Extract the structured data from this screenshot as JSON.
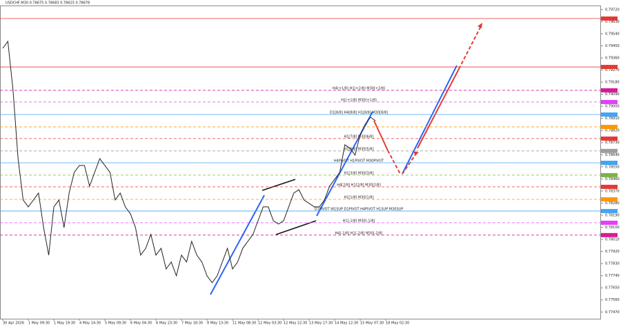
{
  "chart_data": {
    "type": "line",
    "title": "USDCHF,M30  0.78675 0.78683 0.78625 0.78678",
    "categories": [
      "30 Apr 2026",
      null,
      null,
      null,
      null,
      "1 May 09:30",
      null,
      null,
      null,
      null,
      "1 May 19:30",
      null,
      null,
      null,
      null,
      "4 May 14:30",
      null,
      null,
      null,
      null,
      "5 May 09:30",
      null,
      null,
      null,
      null,
      "6 May 04:30",
      null,
      null,
      null,
      null,
      "6 May 23:30",
      null,
      null,
      null,
      null,
      "7 May 18:30",
      null,
      null,
      null,
      null,
      "8 May 13:30",
      null,
      null,
      null,
      null,
      "11 May 08:30",
      null,
      null,
      null,
      null,
      "12 May 03:30",
      null,
      null,
      null,
      null,
      "12 May 22:30",
      null,
      null,
      null,
      null,
      "13 May 17:30",
      null,
      null,
      null,
      null,
      "14 May 12:30",
      null,
      null,
      null,
      null,
      "15 May 07:30",
      null,
      null,
      null,
      null,
      "18 May 02:30",
      null,
      null,
      null,
      null
    ],
    "series": [
      {
        "name": "USDCHF",
        "color": "#222222",
        "values": [
          0.79432,
          0.79483,
          0.79124,
          0.78611,
          0.78303,
          0.78252,
          0.78303,
          0.78355,
          0.78098,
          0.77893,
          0.78252,
          0.78303,
          0.78098,
          0.78355,
          0.78509,
          0.7856,
          0.7856,
          0.78406,
          0.78509,
          0.78611,
          0.7856,
          0.78509,
          0.78303,
          0.78355,
          0.78252,
          0.78201,
          0.78098,
          0.77893,
          0.77944,
          0.78047,
          0.77893,
          0.77944,
          0.7779,
          0.77842,
          0.77739,
          0.77893,
          0.77842,
          0.77996,
          0.77893,
          0.77842,
          0.77739,
          0.77688,
          0.77739,
          0.77842,
          0.77944,
          0.7779,
          0.77842,
          0.77944,
          0.77996,
          0.78047,
          0.78149,
          0.78252,
          0.78252,
          0.78149,
          0.78124,
          0.78149,
          0.78252,
          0.78355,
          0.7838,
          0.78303,
          0.78278,
          0.78252,
          0.78252,
          0.78303,
          0.78406,
          0.78457,
          0.78509,
          0.78714,
          0.78688,
          0.78637,
          0.78791,
          0.78868,
          0.78919,
          0.78893,
          null,
          null,
          null,
          null,
          null,
          null
        ]
      }
    ],
    "ylim": [
      0.7742,
      0.7975
    ],
    "yticks": [
      {
        "value": 0.7747,
        "label": "0.77470"
      },
      {
        "value": 0.7756,
        "label": "0.77560"
      },
      {
        "value": 0.7765,
        "label": "0.77650"
      },
      {
        "value": 0.7774,
        "label": "0.77740"
      },
      {
        "value": 0.7783,
        "label": "0.77830"
      },
      {
        "value": 0.7792,
        "label": "0.77920"
      },
      {
        "value": 0.7801,
        "label": "0.78010"
      },
      {
        "value": 0.781,
        "label": "0.78100"
      },
      {
        "value": 0.7819,
        "label": "0.78190"
      },
      {
        "value": 0.7828,
        "label": "0.78280"
      },
      {
        "value": 0.7837,
        "label": "0.78370"
      },
      {
        "value": 0.7846,
        "label": "0.78460"
      },
      {
        "value": 0.7855,
        "label": "0.78550"
      },
      {
        "value": 0.7864,
        "label": "0.78640"
      },
      {
        "value": 0.7873,
        "label": "0.78730"
      },
      {
        "value": 0.7882,
        "label": "0.78820"
      },
      {
        "value": 0.7891,
        "label": "0.78910"
      },
      {
        "value": 0.79,
        "label": "0.79000"
      },
      {
        "value": 0.7909,
        "label": "0.79090"
      },
      {
        "value": 0.7918,
        "label": "0.79180"
      },
      {
        "value": 0.7927,
        "label": "0.79270"
      },
      {
        "value": 0.7936,
        "label": "0.79360"
      },
      {
        "value": 0.7945,
        "label": "0.79450"
      },
      {
        "value": 0.7954,
        "label": "0.79540"
      },
      {
        "value": 0.7963,
        "label": "0.79630"
      },
      {
        "value": 0.7972,
        "label": "0.79720"
      }
    ],
    "levels": [
      {
        "value": 0.79653,
        "color": "#e53935",
        "dashed": false
      },
      {
        "value": 0.79293,
        "color": "#e53935",
        "dashed": false
      },
      {
        "value": 0.79119,
        "color": "#d81b9a",
        "dashed": true,
        "label": "H4[+1/8] H1[+2/8] M30[+2/8]"
      },
      {
        "value": 0.79032,
        "color": "#e040fb",
        "dashed": true,
        "label": "H1[+1/8] M30[+1/8]"
      },
      {
        "value": 0.78939,
        "color": "#42a5f5",
        "dashed": false,
        "label": "D1[8/8] H4[8/8] H1[8/8] M30[8/8]"
      },
      {
        "value": 0.78847,
        "color": "#ff9800",
        "dashed": true
      },
      {
        "value": 0.7876,
        "color": "#e53935",
        "dashed": true,
        "label": "H1[7/8] M30[6/8]"
      },
      {
        "value": 0.78668,
        "color": "#9e9e9e",
        "dashed": true,
        "label": "H1[5/8] M30[5/8]"
      },
      {
        "value": 0.7858,
        "color": "#42a5f5",
        "dashed": false,
        "label": "H4PIVOT H1PIVOT M30PIVOT"
      },
      {
        "value": 0.78488,
        "color": "#7cb342",
        "dashed": true,
        "label": "H1[3/8] M30[3/8]"
      },
      {
        "value": 0.78401,
        "color": "#e53935",
        "dashed": true,
        "label": "H4[2/8] H1[2/8] M30[2/8]"
      },
      {
        "value": 0.78308,
        "color": "#ff9800",
        "dashed": true,
        "label": "H1[1/8] M30[1/8]"
      },
      {
        "value": 0.78221,
        "color": "#42a5f5",
        "dashed": false,
        "label": "D1PIVOT W1SUP D1PIVOT H4PIVOT H1SUP M30SUP"
      },
      {
        "value": 0.78134,
        "color": "#e040fb",
        "dashed": true,
        "label": "H1[-1/8] M30[-1/8]"
      },
      {
        "value": 0.78042,
        "color": "#d81b9a",
        "dashed": true,
        "label": "H4[-1/8] H1[-2/8] M30[-2/8]"
      }
    ]
  }
}
